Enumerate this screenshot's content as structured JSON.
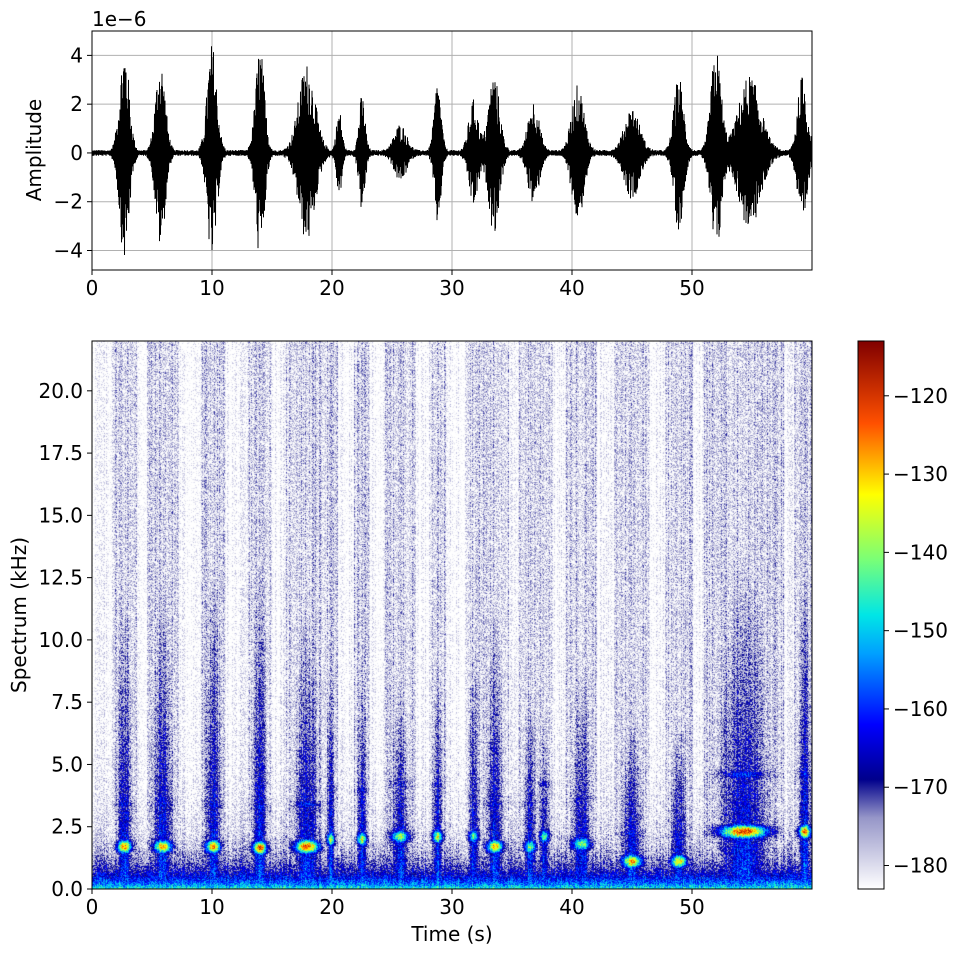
{
  "chart_data": [
    {
      "type": "line",
      "title": "",
      "xlabel": "",
      "ylabel": "Amplitude",
      "offset_text": "1e−6",
      "xlim": [
        0,
        60
      ],
      "ylim": [
        -4.8,
        5.0
      ],
      "xticks": [
        0,
        10,
        20,
        30,
        40,
        50
      ],
      "xtick_labels": [
        "0",
        "10",
        "20",
        "30",
        "40",
        "50"
      ],
      "yticks": [
        4,
        2,
        0,
        -2,
        -4
      ],
      "ytick_labels": [
        "4",
        "2",
        "0",
        "−2",
        "−4"
      ],
      "grid": true,
      "line_color": "#000000",
      "noise_floor": 0.12,
      "bursts": [
        {
          "t": 2.7,
          "amp": 4.3,
          "w": 1.4
        },
        {
          "t": 5.7,
          "amp": 3.8,
          "w": 1.4
        },
        {
          "t": 10.0,
          "amp": 4.4,
          "w": 1.4
        },
        {
          "t": 14.0,
          "amp": 4.3,
          "w": 1.3
        },
        {
          "t": 17.9,
          "amp": 3.6,
          "w": 2.4
        },
        {
          "t": 20.6,
          "amp": 1.7,
          "w": 0.8
        },
        {
          "t": 22.5,
          "amp": 2.3,
          "w": 0.9
        },
        {
          "t": 25.7,
          "amp": 1.1,
          "w": 1.8
        },
        {
          "t": 28.8,
          "amp": 2.9,
          "w": 1.0
        },
        {
          "t": 31.8,
          "amp": 2.1,
          "w": 1.4
        },
        {
          "t": 33.5,
          "amp": 3.2,
          "w": 1.6
        },
        {
          "t": 36.8,
          "amp": 2.1,
          "w": 1.6
        },
        {
          "t": 40.5,
          "amp": 2.7,
          "w": 1.8
        },
        {
          "t": 45.0,
          "amp": 1.8,
          "w": 2.2
        },
        {
          "t": 48.9,
          "amp": 3.1,
          "w": 1.4
        },
        {
          "t": 52.0,
          "amp": 4.2,
          "w": 1.5
        },
        {
          "t": 54.8,
          "amp": 3.1,
          "w": 3.2
        },
        {
          "t": 59.2,
          "amp": 3.1,
          "w": 1.4
        }
      ]
    },
    {
      "type": "heatmap",
      "title": "",
      "xlabel": "Time (s)",
      "ylabel": "Spectrum (kHz)",
      "xlim": [
        0,
        60
      ],
      "ylim": [
        0,
        22
      ],
      "xticks": [
        0,
        10,
        20,
        30,
        40,
        50
      ],
      "xtick_labels": [
        "0",
        "10",
        "20",
        "30",
        "40",
        "50"
      ],
      "yticks": [
        0,
        2.5,
        5,
        7.5,
        10,
        12.5,
        15,
        17.5,
        20
      ],
      "ytick_labels": [
        "0.0",
        "2.5",
        "5.0",
        "7.5",
        "10.0",
        "12.5",
        "15.0",
        "17.5",
        "20.0"
      ],
      "colorscale": "jet (white at minimum)",
      "colorbar": {
        "range": [
          -183,
          -113
        ],
        "ticks": [
          -120,
          -130,
          -140,
          -150,
          -160,
          -170,
          -180
        ],
        "tick_labels": [
          "−120",
          "−130",
          "−140",
          "−150",
          "−160",
          "−170",
          "−180"
        ]
      },
      "bursts": [
        {
          "t": 2.7,
          "w": 1.4,
          "f0": 1.7,
          "peak": -122,
          "top": 11
        },
        {
          "t": 5.9,
          "w": 1.8,
          "f0": 1.7,
          "peak": -126,
          "top": 11
        },
        {
          "t": 10.1,
          "w": 1.4,
          "f0": 1.7,
          "peak": -122,
          "top": 12
        },
        {
          "t": 14.0,
          "w": 1.4,
          "f0": 1.65,
          "peak": -120,
          "top": 12
        },
        {
          "t": 17.9,
          "w": 2.4,
          "f0": 1.7,
          "peak": -119,
          "top": 10
        },
        {
          "t": 19.9,
          "w": 0.8,
          "f0": 2.0,
          "peak": -136,
          "top": 8
        },
        {
          "t": 22.5,
          "w": 0.9,
          "f0": 2.0,
          "peak": -133,
          "top": 8
        },
        {
          "t": 25.7,
          "w": 1.8,
          "f0": 2.1,
          "peak": -136,
          "top": 7
        },
        {
          "t": 28.8,
          "w": 1.0,
          "f0": 2.1,
          "peak": -133,
          "top": 8
        },
        {
          "t": 31.8,
          "w": 1.0,
          "f0": 2.1,
          "peak": -140,
          "top": 9
        },
        {
          "t": 33.6,
          "w": 1.6,
          "f0": 1.7,
          "peak": -126,
          "top": 10
        },
        {
          "t": 36.5,
          "w": 1.2,
          "f0": 1.7,
          "peak": -138,
          "top": 7
        },
        {
          "t": 37.7,
          "w": 1.0,
          "f0": 2.1,
          "peak": -140,
          "top": 6
        },
        {
          "t": 40.8,
          "w": 1.8,
          "f0": 1.8,
          "peak": -136,
          "top": 8
        },
        {
          "t": 45.0,
          "w": 2.0,
          "f0": 1.1,
          "peak": -126,
          "top": 6
        },
        {
          "t": 48.9,
          "w": 1.6,
          "f0": 1.1,
          "peak": -128,
          "top": 6
        },
        {
          "t": 54.3,
          "w": 4.6,
          "f0": 2.3,
          "peak": -118,
          "top": 12
        },
        {
          "t": 59.4,
          "w": 1.2,
          "f0": 2.3,
          "peak": -122,
          "top": 12
        }
      ]
    }
  ]
}
